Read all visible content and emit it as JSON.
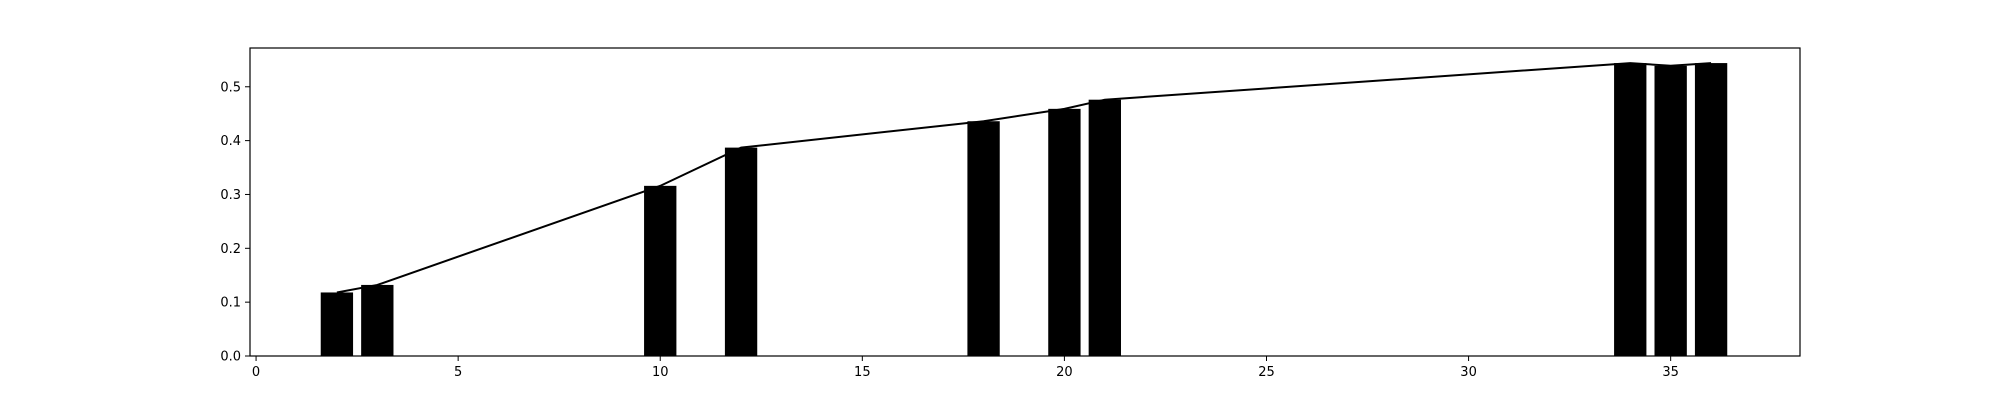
{
  "chart_data": {
    "type": "bar",
    "x": [
      2,
      3,
      10,
      12,
      18,
      20,
      21,
      34,
      35,
      36
    ],
    "values": [
      0.118,
      0.132,
      0.316,
      0.387,
      0.436,
      0.459,
      0.476,
      0.544,
      0.539,
      0.544
    ],
    "line_values": [
      0.118,
      0.132,
      0.316,
      0.387,
      0.436,
      0.459,
      0.476,
      0.544,
      0.539,
      0.544
    ],
    "title": "",
    "xlabel": "",
    "ylabel": "",
    "xlim": [
      -0.15,
      38.2
    ],
    "ylim": [
      0,
      0.572
    ],
    "xticks": [
      0,
      5,
      10,
      15,
      20,
      25,
      30,
      35
    ],
    "yticks": [
      0.0,
      0.1,
      0.2,
      0.3,
      0.4,
      0.5
    ],
    "xtick_labels": [
      "0",
      "5",
      "10",
      "15",
      "20",
      "25",
      "30",
      "35"
    ],
    "ytick_labels": [
      "0.0",
      "0.1",
      "0.2",
      "0.3",
      "0.4",
      "0.5"
    ],
    "grid": false,
    "legend": "none",
    "colors": {
      "bar": "#000000",
      "line": "#000000",
      "axes": "#000000"
    }
  }
}
